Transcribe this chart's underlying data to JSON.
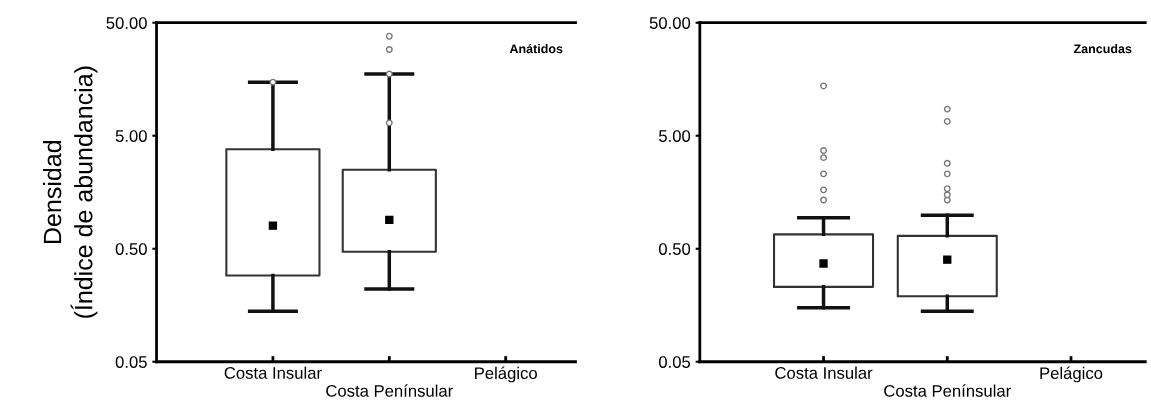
{
  "chart_data": [
    {
      "type": "box",
      "ylabel": "Densidad\n(Índice de abundancia)",
      "categories": [
        "Costa Insular",
        "Costa Penínsular",
        "Pelágico"
      ],
      "boxes": [
        {
          "low": 0.14,
          "q1": 0.29,
          "median": 0.8,
          "q3": 3.8,
          "high": 14.9,
          "outliers": [
            14.9
          ]
        },
        {
          "low": 0.22,
          "q1": 0.47,
          "median": 0.9,
          "q3": 2.5,
          "high": 17.6,
          "outliers": [
            6.5,
            17.6,
            29,
            38
          ]
        },
        null
      ],
      "log": true,
      "ylim": [
        0.05,
        50
      ],
      "yticks": [
        {
          "value": 0.05,
          "label": "0.05"
        },
        {
          "value": 0.5,
          "label": "0.50"
        },
        {
          "value": 5,
          "label": "5.00"
        },
        {
          "value": 50,
          "label": "50.00"
        }
      ],
      "annotations": [
        "Anátidos"
      ],
      "grid": false,
      "legend": false
    },
    {
      "type": "box",
      "categories": [
        "Costa Insular",
        "Costa Penínsular",
        "Pelágico"
      ],
      "boxes": [
        {
          "low": 0.15,
          "q1": 0.23,
          "median": 0.37,
          "q3": 0.67,
          "high": 0.94,
          "outliers": [
            1.35,
            1.66,
            2.3,
            3.2,
            3.7,
            13.8
          ]
        },
        {
          "low": 0.14,
          "q1": 0.19,
          "median": 0.4,
          "q3": 0.65,
          "high": 0.99,
          "outliers": [
            1.35,
            1.5,
            1.7,
            2.3,
            2.85,
            6.7,
            8.6
          ]
        },
        null
      ],
      "log": true,
      "ylim": [
        0.05,
        50
      ],
      "yticks": [
        {
          "value": 0.05,
          "label": "0.05"
        },
        {
          "value": 0.5,
          "label": "0.50"
        },
        {
          "value": 5,
          "label": "5.00"
        },
        {
          "value": 50,
          "label": "50.00"
        }
      ],
      "annotations": [
        "Zancudas"
      ],
      "grid": false,
      "legend": false
    }
  ]
}
